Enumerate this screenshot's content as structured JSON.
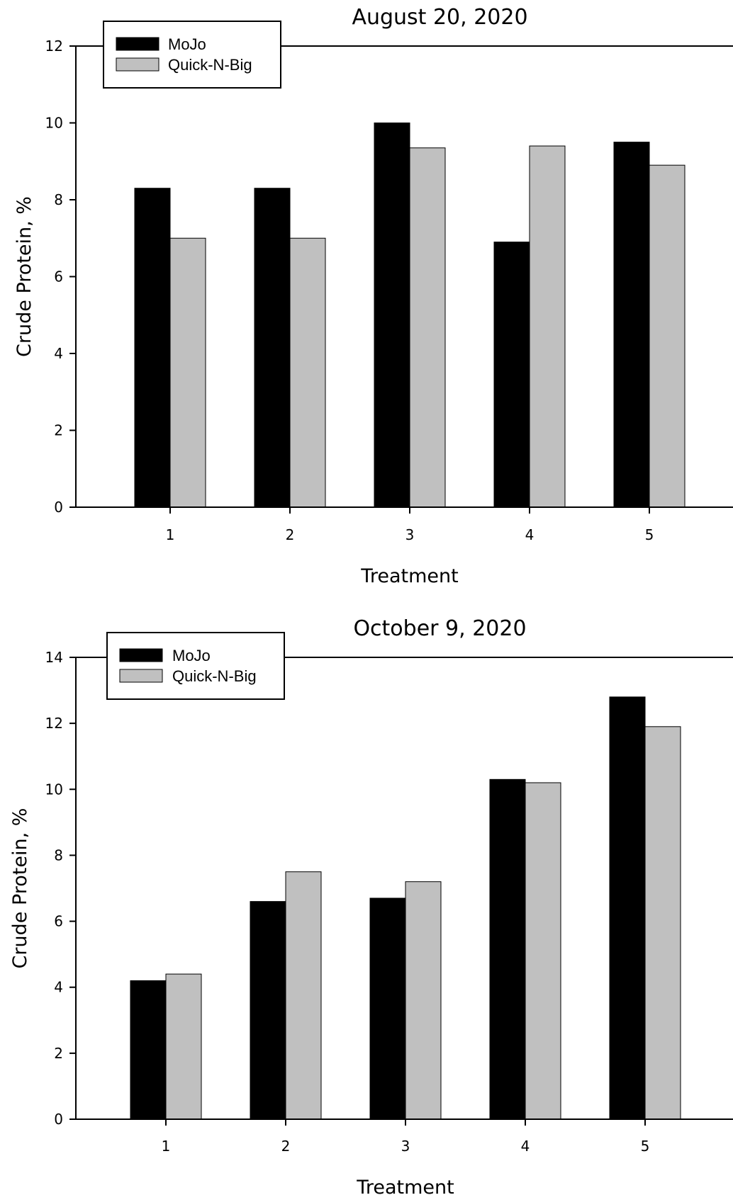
{
  "chart_data": [
    {
      "type": "bar",
      "title": "August 20, 2020",
      "xlabel": "Treatment",
      "ylabel": "Crude Protein, %",
      "categories": [
        "1",
        "2",
        "3",
        "4",
        "5"
      ],
      "ylim": [
        0,
        12
      ],
      "yticks": [
        0,
        2,
        4,
        6,
        8,
        10,
        12
      ],
      "grid": false,
      "legend_position": "top-left",
      "series": [
        {
          "name": "MoJo",
          "color": "#000000",
          "values": [
            8.3,
            8.3,
            10.0,
            6.9,
            9.5
          ]
        },
        {
          "name": "Quick-N-Big",
          "color": "#c0c0c0",
          "values": [
            7.0,
            7.0,
            9.35,
            9.4,
            8.9
          ]
        }
      ]
    },
    {
      "type": "bar",
      "title": "October 9, 2020",
      "xlabel": "Treatment",
      "ylabel": "Crude Protein, %",
      "categories": [
        "1",
        "2",
        "3",
        "4",
        "5"
      ],
      "ylim": [
        0,
        14
      ],
      "yticks": [
        0,
        2,
        4,
        6,
        8,
        10,
        12,
        14
      ],
      "grid": false,
      "legend_position": "top-left",
      "series": [
        {
          "name": "MoJo",
          "color": "#000000",
          "values": [
            4.2,
            6.6,
            6.7,
            10.3,
            12.8
          ]
        },
        {
          "name": "Quick-N-Big",
          "color": "#c0c0c0",
          "values": [
            4.4,
            7.5,
            7.2,
            10.2,
            11.9
          ]
        }
      ]
    }
  ]
}
